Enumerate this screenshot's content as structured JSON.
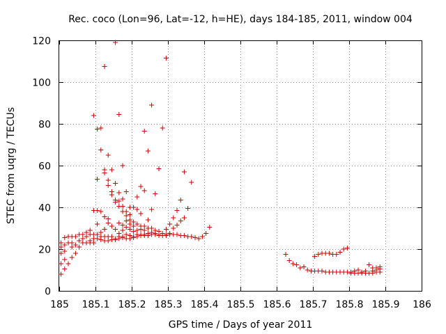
{
  "chart_data": {
    "type": "scatter",
    "title": "Rec. coco (Lon=96, Lat=-12, h=HE), days 184-185, 2011, window 004",
    "xlabel": "GPS time / Days of year 2011",
    "ylabel": "STEC from uqrg / TECUs",
    "xlim": [
      185,
      186
    ],
    "ylim": [
      0,
      120
    ],
    "xticks": [
      "185",
      "185.1",
      "185.2",
      "185.3",
      "185.4",
      "185.5",
      "185.6",
      "185.7",
      "185.8",
      "185.9",
      "186"
    ],
    "yticks": [
      "0",
      "20",
      "40",
      "60",
      "80",
      "100",
      "120"
    ],
    "xtick_values": [
      185,
      185.1,
      185.2,
      185.3,
      185.4,
      185.5,
      185.6,
      185.7,
      185.8,
      185.9,
      186
    ],
    "ytick_values": [
      0,
      20,
      40,
      60,
      80,
      100,
      120
    ],
    "grid": true,
    "marker": "+",
    "color": "#cc0000",
    "series": [
      {
        "points": [
          [
            185.005,
            8
          ],
          [
            185.005,
            13
          ],
          [
            185.005,
            18
          ],
          [
            185.005,
            21
          ],
          [
            185.005,
            23
          ],
          [
            185.015,
            10.5
          ],
          [
            185.015,
            15
          ],
          [
            185.015,
            19
          ],
          [
            185.015,
            22
          ],
          [
            185.015,
            25.5
          ],
          [
            185.025,
            13
          ],
          [
            185.025,
            23
          ],
          [
            185.025,
            26
          ],
          [
            185.035,
            16
          ],
          [
            185.035,
            21
          ],
          [
            185.035,
            23
          ],
          [
            185.035,
            26
          ],
          [
            185.045,
            18
          ],
          [
            185.045,
            22
          ],
          [
            185.045,
            26
          ],
          [
            185.055,
            21
          ],
          [
            185.055,
            24
          ],
          [
            185.055,
            27
          ],
          [
            185.065,
            23
          ],
          [
            185.065,
            25
          ],
          [
            185.065,
            27
          ],
          [
            185.075,
            23
          ],
          [
            185.075,
            26
          ],
          [
            185.075,
            28
          ],
          [
            185.085,
            23
          ],
          [
            185.085,
            24
          ],
          [
            185.085,
            27
          ],
          [
            185.085,
            29
          ],
          [
            185.095,
            84
          ],
          [
            185.095,
            38.5
          ],
          [
            185.095,
            23
          ],
          [
            185.095,
            25
          ],
          [
            185.095,
            27
          ],
          [
            185.105,
            53.5
          ],
          [
            185.105,
            77.5
          ],
          [
            185.105,
            38.5
          ],
          [
            185.105,
            32
          ],
          [
            185.105,
            25
          ],
          [
            185.105,
            27
          ],
          [
            185.115,
            67.5
          ],
          [
            185.115,
            78
          ],
          [
            185.115,
            38
          ],
          [
            185.115,
            28
          ],
          [
            185.115,
            26
          ],
          [
            185.115,
            24.5
          ],
          [
            185.125,
            107.5
          ],
          [
            185.125,
            58
          ],
          [
            185.125,
            56.5
          ],
          [
            185.125,
            35.5
          ],
          [
            185.125,
            29.5
          ],
          [
            185.125,
            26
          ],
          [
            185.125,
            24
          ],
          [
            185.135,
            65
          ],
          [
            185.135,
            53
          ],
          [
            185.135,
            50.5
          ],
          [
            185.135,
            34.5
          ],
          [
            185.135,
            32.5
          ],
          [
            185.135,
            26
          ],
          [
            185.135,
            24
          ],
          [
            185.145,
            58
          ],
          [
            185.145,
            47.5
          ],
          [
            185.145,
            46
          ],
          [
            185.145,
            31
          ],
          [
            185.145,
            26
          ],
          [
            185.145,
            24.5
          ],
          [
            185.155,
            119
          ],
          [
            185.155,
            51.5
          ],
          [
            185.155,
            43.5
          ],
          [
            185.155,
            42.5
          ],
          [
            185.155,
            29.5
          ],
          [
            185.155,
            25
          ],
          [
            185.155,
            24.5
          ],
          [
            185.165,
            84.5
          ],
          [
            185.165,
            47
          ],
          [
            185.165,
            43
          ],
          [
            185.165,
            40.5
          ],
          [
            185.165,
            32.5
          ],
          [
            185.165,
            27.5
          ],
          [
            185.165,
            26
          ],
          [
            185.165,
            25
          ],
          [
            185.175,
            60
          ],
          [
            185.175,
            44
          ],
          [
            185.175,
            40.5
          ],
          [
            185.175,
            38
          ],
          [
            185.175,
            31.5
          ],
          [
            185.175,
            29
          ],
          [
            185.175,
            26
          ],
          [
            185.175,
            25.5
          ],
          [
            185.185,
            47.5
          ],
          [
            185.185,
            38
          ],
          [
            185.185,
            36
          ],
          [
            185.185,
            33.5
          ],
          [
            185.185,
            30.5
          ],
          [
            185.185,
            27
          ],
          [
            185.185,
            25
          ],
          [
            185.195,
            40
          ],
          [
            185.195,
            36.5
          ],
          [
            185.195,
            34
          ],
          [
            185.195,
            32
          ],
          [
            185.195,
            29.5
          ],
          [
            185.195,
            26.5
          ],
          [
            185.195,
            25
          ],
          [
            185.205,
            40
          ],
          [
            185.205,
            33
          ],
          [
            185.205,
            31
          ],
          [
            185.205,
            28.5
          ],
          [
            185.205,
            26
          ],
          [
            185.205,
            25.5
          ],
          [
            185.215,
            45
          ],
          [
            185.215,
            39
          ],
          [
            185.215,
            32
          ],
          [
            185.215,
            29
          ],
          [
            185.215,
            27
          ],
          [
            185.215,
            26
          ],
          [
            185.225,
            50
          ],
          [
            185.225,
            37
          ],
          [
            185.225,
            31
          ],
          [
            185.225,
            29.5
          ],
          [
            185.225,
            27
          ],
          [
            185.225,
            26.5
          ],
          [
            185.235,
            76.5
          ],
          [
            185.235,
            48
          ],
          [
            185.235,
            31
          ],
          [
            185.235,
            29
          ],
          [
            185.235,
            27
          ],
          [
            185.235,
            26.5
          ],
          [
            185.245,
            67
          ],
          [
            185.245,
            34
          ],
          [
            185.245,
            30
          ],
          [
            185.245,
            27.5
          ],
          [
            185.245,
            26.5
          ],
          [
            185.255,
            89
          ],
          [
            185.255,
            39
          ],
          [
            185.255,
            30
          ],
          [
            185.255,
            28
          ],
          [
            185.255,
            27
          ],
          [
            185.265,
            46.5
          ],
          [
            185.265,
            29
          ],
          [
            185.265,
            27.5
          ],
          [
            185.265,
            27
          ],
          [
            185.275,
            58.5
          ],
          [
            185.275,
            28.5
          ],
          [
            185.275,
            27
          ],
          [
            185.275,
            26.5
          ],
          [
            185.285,
            78
          ],
          [
            185.285,
            27.5
          ],
          [
            185.285,
            26.5
          ],
          [
            185.295,
            111.5
          ],
          [
            185.295,
            29.5
          ],
          [
            185.295,
            27
          ],
          [
            185.295,
            26.5
          ],
          [
            185.305,
            32
          ],
          [
            185.305,
            27.5
          ],
          [
            185.305,
            27
          ],
          [
            185.315,
            35
          ],
          [
            185.315,
            30
          ],
          [
            185.315,
            27
          ],
          [
            185.325,
            38.5
          ],
          [
            185.325,
            31.5
          ],
          [
            185.325,
            27
          ],
          [
            185.335,
            43.5
          ],
          [
            185.335,
            33.5
          ],
          [
            185.335,
            26.5
          ],
          [
            185.345,
            57
          ],
          [
            185.345,
            35
          ],
          [
            185.345,
            26.5
          ],
          [
            185.355,
            39.5
          ],
          [
            185.355,
            26
          ],
          [
            185.365,
            52
          ],
          [
            185.365,
            26
          ],
          [
            185.375,
            25.5
          ],
          [
            185.385,
            25
          ],
          [
            185.395,
            26
          ],
          [
            185.405,
            27.5
          ],
          [
            185.415,
            30.5
          ],
          [
            185.625,
            17.5
          ],
          [
            185.635,
            14.5
          ],
          [
            185.645,
            13
          ],
          [
            185.655,
            12.5
          ],
          [
            185.665,
            11
          ],
          [
            185.675,
            11.5
          ],
          [
            185.685,
            10
          ],
          [
            185.695,
            9.5
          ],
          [
            185.705,
            9.5
          ],
          [
            185.705,
            16.5
          ],
          [
            185.715,
            9.5
          ],
          [
            185.715,
            17.5
          ],
          [
            185.725,
            9.5
          ],
          [
            185.725,
            18
          ],
          [
            185.735,
            9
          ],
          [
            185.735,
            18
          ],
          [
            185.745,
            9
          ],
          [
            185.745,
            18
          ],
          [
            185.755,
            9
          ],
          [
            185.755,
            17.5
          ],
          [
            185.765,
            9
          ],
          [
            185.765,
            17.5
          ],
          [
            185.775,
            9
          ],
          [
            185.775,
            18.5
          ],
          [
            185.785,
            9
          ],
          [
            185.785,
            20
          ],
          [
            185.795,
            9
          ],
          [
            185.795,
            20.5
          ],
          [
            185.805,
            8.5
          ],
          [
            185.805,
            9
          ],
          [
            185.815,
            8.5
          ],
          [
            185.815,
            9.5
          ],
          [
            185.825,
            8.5
          ],
          [
            185.825,
            10
          ],
          [
            185.835,
            8.5
          ],
          [
            185.835,
            9
          ],
          [
            185.845,
            8.5
          ],
          [
            185.845,
            9.5
          ],
          [
            185.855,
            8.5
          ],
          [
            185.855,
            12.5
          ],
          [
            185.865,
            8.5
          ],
          [
            185.865,
            9.5
          ],
          [
            185.865,
            11
          ],
          [
            185.875,
            9
          ],
          [
            185.875,
            10
          ],
          [
            185.875,
            11
          ],
          [
            185.885,
            9
          ],
          [
            185.885,
            10.5
          ],
          [
            185.885,
            11.5
          ]
        ]
      }
    ]
  }
}
